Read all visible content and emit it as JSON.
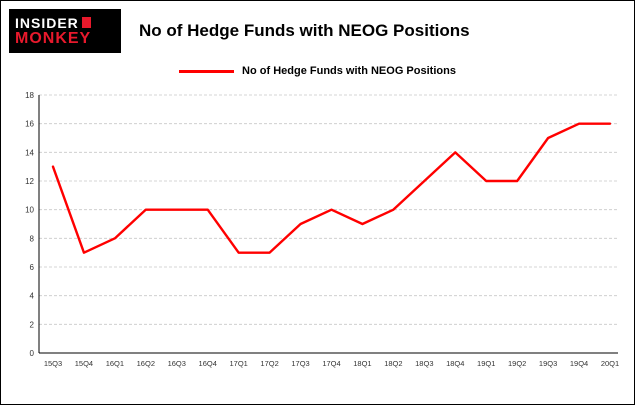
{
  "brand": {
    "line1": "INSIDER",
    "line2": "MONKEY"
  },
  "title": "No of Hedge Funds with NEOG Positions",
  "legend": {
    "label": "No of Hedge Funds with NEOG Positions",
    "color": "#ff0000"
  },
  "chart_data": {
    "type": "line",
    "title": "No of Hedge Funds with NEOG Positions",
    "categories": [
      "15Q3",
      "15Q4",
      "16Q1",
      "16Q2",
      "16Q3",
      "16Q4",
      "17Q1",
      "17Q2",
      "17Q3",
      "17Q4",
      "18Q1",
      "18Q2",
      "18Q3",
      "18Q4",
      "19Q1",
      "19Q2",
      "19Q3",
      "19Q4",
      "20Q1"
    ],
    "series": [
      {
        "name": "No of Hedge Funds with NEOG Positions",
        "color": "#ff0000",
        "values": [
          13,
          7,
          8,
          10,
          10,
          10,
          7,
          7,
          9,
          10,
          9,
          10,
          12,
          14,
          12,
          12,
          15,
          16,
          16
        ]
      }
    ],
    "xlabel": "",
    "ylabel": "",
    "ylim": [
      0,
      18
    ],
    "yticks": [
      0,
      2,
      4,
      6,
      8,
      10,
      12,
      14,
      16,
      18
    ],
    "grid": true,
    "legend_position": "top"
  }
}
